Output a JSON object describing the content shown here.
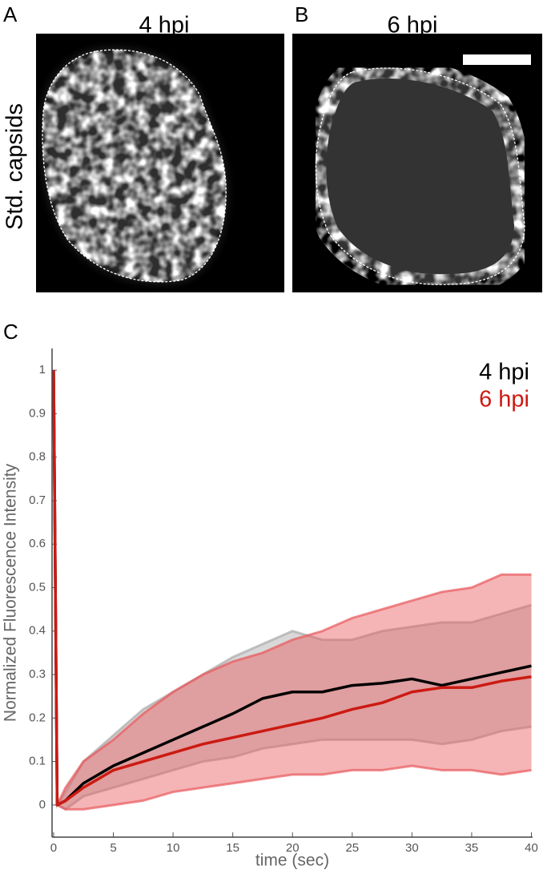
{
  "panels": [
    {
      "label": "A",
      "title": "4 hpi"
    },
    {
      "label": "B",
      "title": "6 hpi"
    }
  ],
  "row_label": "Std. capsids",
  "chart_data": {
    "type": "line",
    "panel_label": "C",
    "xlabel": "time (sec)",
    "ylabel": "Normalized Fluorescence Intensity",
    "x": [
      0,
      0.3,
      1,
      2.5,
      5,
      7.5,
      10,
      12.5,
      15,
      17.5,
      20,
      22.5,
      25,
      27.5,
      30,
      32.5,
      35,
      37.5,
      40
    ],
    "series": [
      {
        "name": "4 hpi",
        "color": "#000000",
        "band_color": "#a9a9a9",
        "values": [
          1,
          0,
          0.01,
          0.05,
          0.09,
          0.12,
          0.15,
          0.18,
          0.21,
          0.245,
          0.26,
          0.26,
          0.275,
          0.28,
          0.29,
          0.275,
          0.29,
          0.305,
          0.32
        ],
        "upper": [
          1,
          0,
          0.03,
          0.1,
          0.16,
          0.22,
          0.26,
          0.3,
          0.34,
          0.37,
          0.4,
          0.38,
          0.38,
          0.4,
          0.41,
          0.42,
          0.42,
          0.44,
          0.46
        ],
        "lower": [
          1,
          0,
          -0.01,
          0.02,
          0.04,
          0.06,
          0.08,
          0.1,
          0.11,
          0.13,
          0.14,
          0.15,
          0.15,
          0.15,
          0.15,
          0.14,
          0.15,
          0.17,
          0.18
        ]
      },
      {
        "name": "6 hpi",
        "color": "#cc1a12",
        "band_color": "#e8585c",
        "values": [
          1,
          0,
          0.01,
          0.04,
          0.08,
          0.1,
          0.12,
          0.14,
          0.155,
          0.17,
          0.185,
          0.2,
          0.22,
          0.235,
          0.26,
          0.27,
          0.27,
          0.285,
          0.295
        ],
        "upper": [
          1,
          0,
          0.04,
          0.1,
          0.15,
          0.21,
          0.26,
          0.3,
          0.33,
          0.35,
          0.38,
          0.4,
          0.43,
          0.45,
          0.47,
          0.49,
          0.5,
          0.53,
          0.53
        ],
        "lower": [
          1,
          0,
          -0.01,
          -0.01,
          0,
          0.01,
          0.03,
          0.04,
          0.05,
          0.06,
          0.07,
          0.07,
          0.08,
          0.08,
          0.09,
          0.08,
          0.08,
          0.07,
          0.08
        ]
      }
    ],
    "xlim": [
      -0.13,
      40.1
    ],
    "ylim": [
      -0.074,
      1.05
    ],
    "xticks": [
      0,
      5,
      10,
      15,
      20,
      25,
      30,
      35,
      40
    ],
    "yticks": [
      0,
      0.1,
      0.2,
      0.3,
      0.4,
      0.5,
      0.6,
      0.7,
      0.8,
      0.9,
      1
    ],
    "legend": "upper right"
  }
}
